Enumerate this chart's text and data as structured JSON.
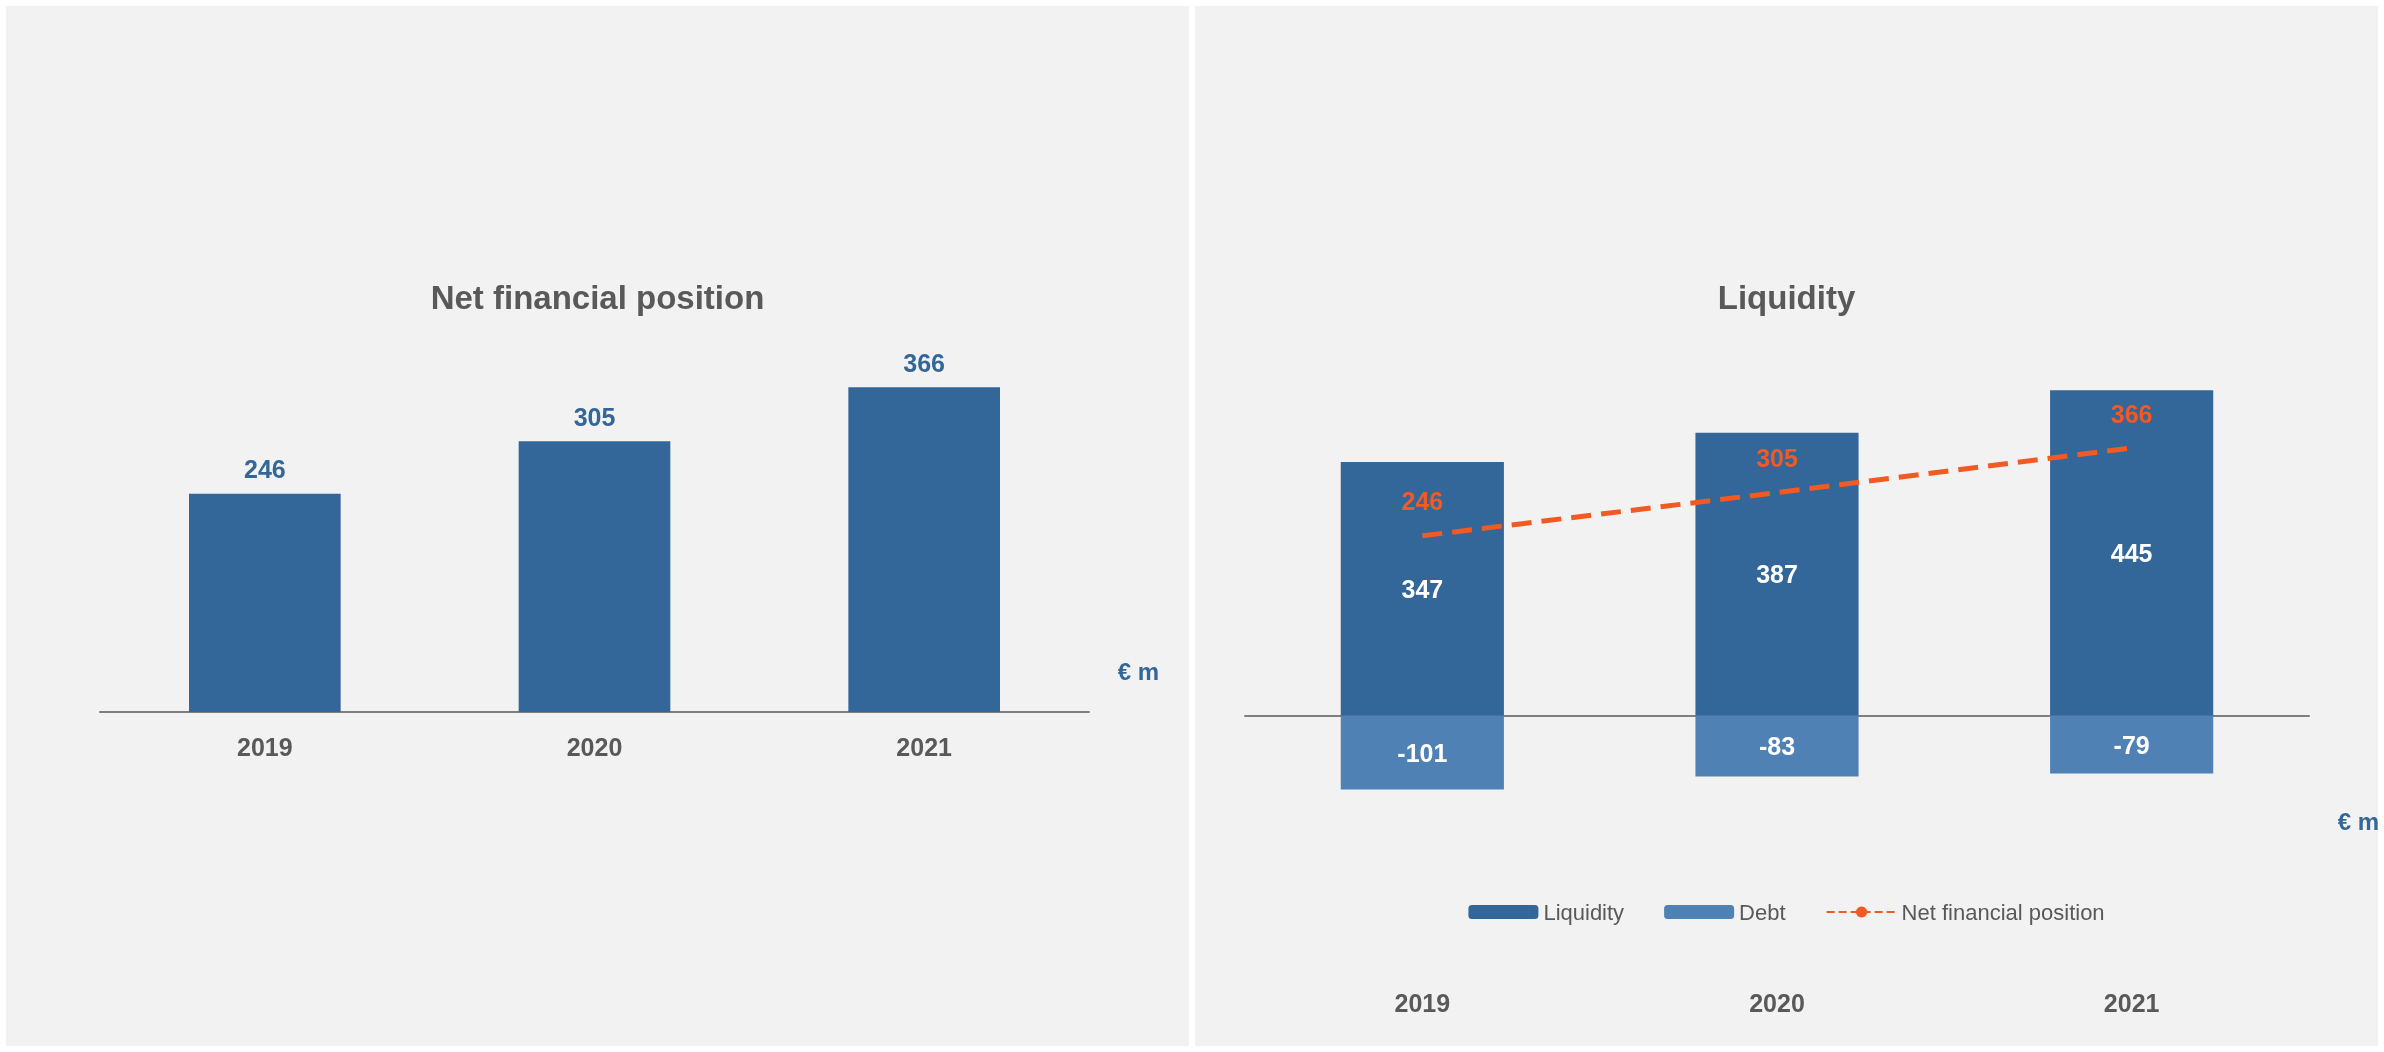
{
  "chart_data": [
    {
      "type": "bar",
      "title": "Net financial position",
      "categories": [
        "2019",
        "2020",
        "2021"
      ],
      "values": [
        246,
        305,
        366
      ],
      "color": "#336699",
      "data_labels": true,
      "annotations": [
        "€ m"
      ],
      "legend": false
    },
    {
      "type": "bar",
      "title": "Liquidity",
      "categories": [
        "2019",
        "2020",
        "2021"
      ],
      "stacked": true,
      "data_labels": true,
      "legend": "bottom",
      "annotations": [
        "€ m"
      ],
      "series": [
        {
          "name": "Liquidity",
          "color": "#336699",
          "values": [
            347,
            387,
            445
          ]
        },
        {
          "name": "Debt",
          "color": "#4f81b5",
          "values": [
            -101,
            -83,
            -79
          ]
        },
        {
          "name": "Net financial position",
          "type": "line",
          "color": "#f15a22",
          "values": [
            246,
            305,
            366
          ],
          "line_style": "dashed",
          "marker": "none"
        }
      ]
    }
  ]
}
